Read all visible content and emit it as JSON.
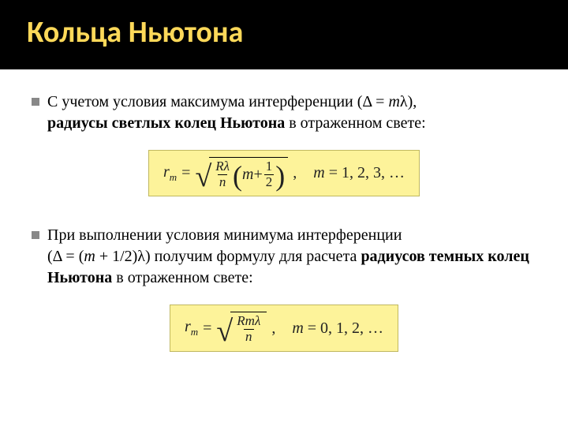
{
  "title": "Кольца Ньютона",
  "para1_pre": "С учетом условия максимума интерференции (Δ = ",
  "para1_italic": "m",
  "para1_post": "λ), ",
  "para1_bold": "радиусы светлых колец Ньютона",
  "para1_tail": " в отраженном свете:",
  "formula1": {
    "lhs_var": "r",
    "lhs_sub": "m",
    "frac_num": "Rλ",
    "frac_den": "n",
    "inner_m": "m",
    "inner_plus": " + ",
    "half_num": "1",
    "half_den": "2",
    "m_label": "m",
    "m_values": " = 1, 2, 3, …"
  },
  "para2_pre": "При выполнении условия минимума интерференции",
  "para2_line2_pre": "(Δ = (",
  "para2_line2_m": "m",
  "para2_line2_mid": " + 1/2)λ) получим формулу для расчета ",
  "para2_bold": "радиусов темных колец Ньютона",
  "para2_tail": " в отраженном свете:",
  "formula2": {
    "lhs_var": "r",
    "lhs_sub": "m",
    "frac_num": "Rmλ",
    "frac_den": "n",
    "m_label": "m",
    "m_values": " = 0, 1, 2, …"
  },
  "colors": {
    "title_bg": "#000000",
    "title_fg": "#fcd859",
    "formula_bg": "#fdf39a",
    "formula_border": "#c0b860",
    "bullet": "#888888",
    "text": "#000000"
  }
}
